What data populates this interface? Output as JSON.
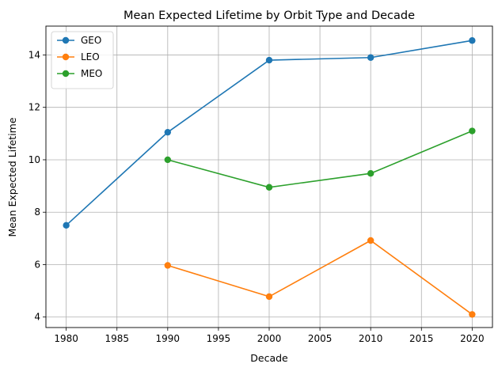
{
  "chart_data": {
    "type": "line",
    "title": "Mean Expected Lifetime by Orbit Type and Decade",
    "xlabel": "Decade",
    "ylabel": "Mean Expected Lifetime",
    "xlim": [
      1978,
      2022
    ],
    "ylim": [
      3.6,
      15.1
    ],
    "xticks": [
      1980,
      1985,
      1990,
      1995,
      2000,
      2005,
      2010,
      2015,
      2020
    ],
    "yticks": [
      4,
      6,
      8,
      10,
      12,
      14
    ],
    "grid": true,
    "legend_position": "upper-left",
    "series": [
      {
        "name": "GEO",
        "color": "#1f77b4",
        "x": [
          1980,
          1990,
          2000,
          2010,
          2020
        ],
        "y": [
          7.5,
          11.05,
          13.8,
          13.9,
          14.55
        ]
      },
      {
        "name": "LEO",
        "color": "#ff7f0e",
        "x": [
          1990,
          2000,
          2010,
          2020
        ],
        "y": [
          5.97,
          4.78,
          6.92,
          4.1
        ]
      },
      {
        "name": "MEO",
        "color": "#2ca02c",
        "x": [
          1990,
          2000,
          2010,
          2020
        ],
        "y": [
          10.0,
          8.95,
          9.48,
          11.1
        ]
      }
    ]
  }
}
